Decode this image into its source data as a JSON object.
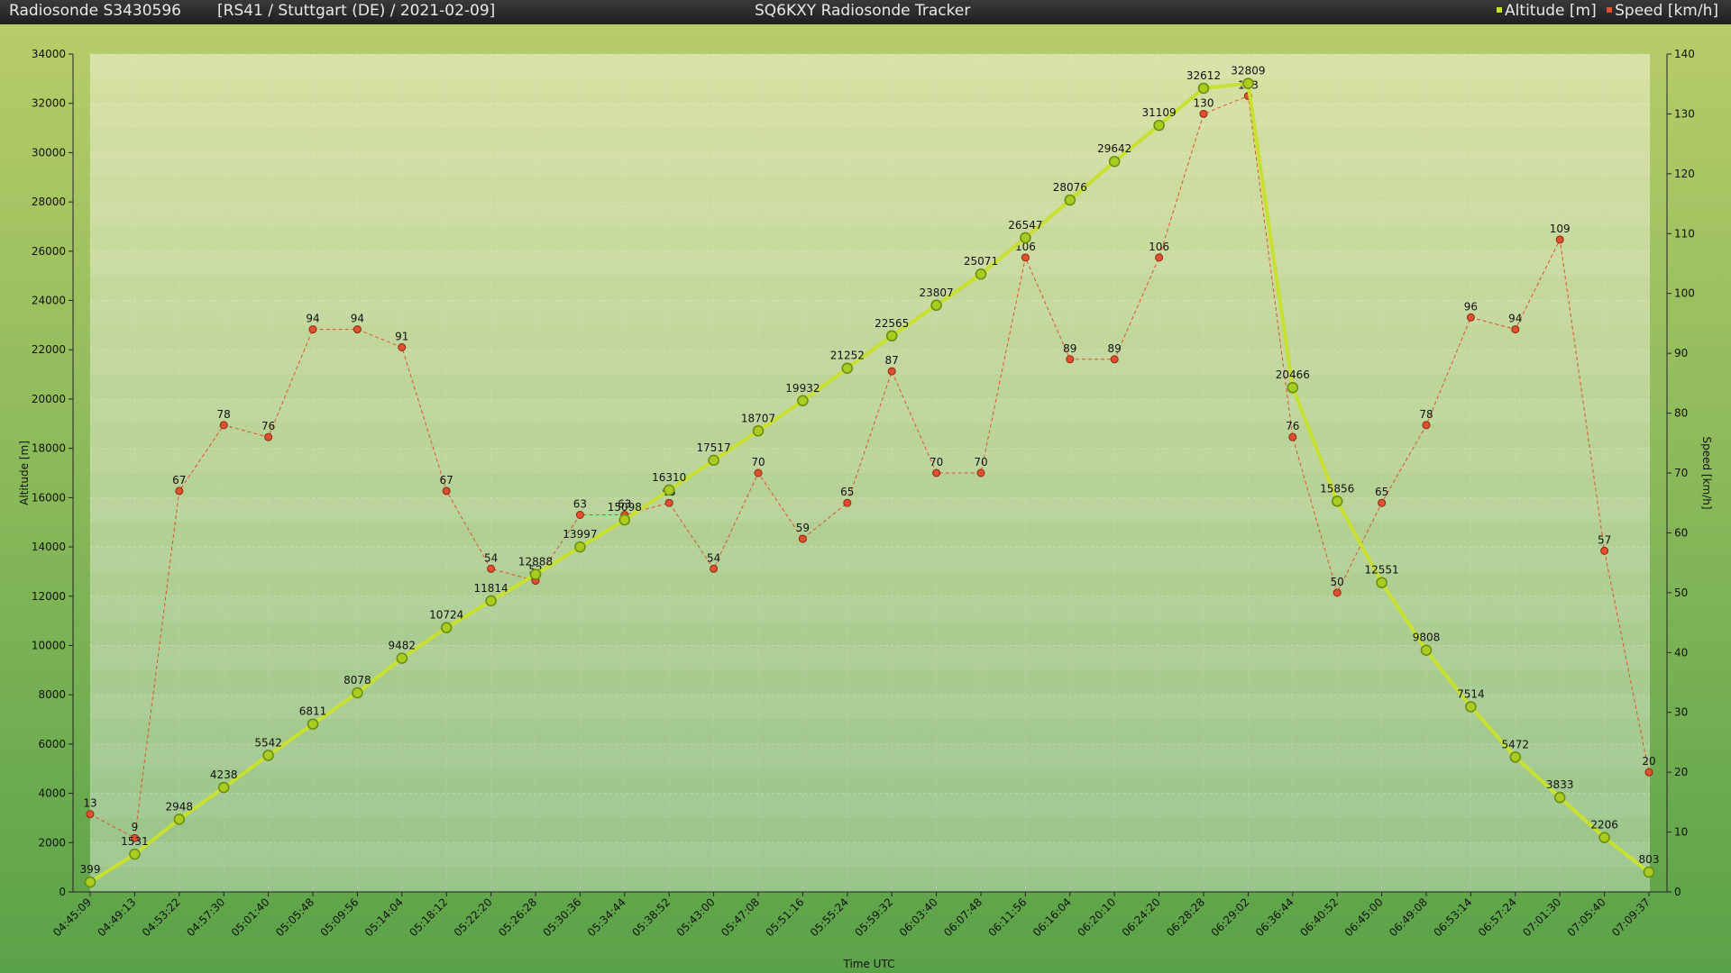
{
  "header": {
    "left_title": "Radiosonde S3430596",
    "info": "[RS41 / Stuttgart (DE) / 2021-02-09]",
    "center_title": "SQ6KXY Radiosonde Tracker"
  },
  "chart_data": {
    "type": "line",
    "xlabel": "Time UTC",
    "ylabel_left": "Altitude [m]",
    "ylabel_right": "Speed [km/h]",
    "ylim_left": [
      0,
      34000
    ],
    "ylim_right": [
      0,
      140
    ],
    "yticks_left": [
      0,
      2000,
      4000,
      6000,
      8000,
      10000,
      12000,
      14000,
      16000,
      18000,
      20000,
      22000,
      24000,
      26000,
      28000,
      30000,
      32000,
      34000
    ],
    "yticks_right": [
      0,
      10,
      20,
      30,
      40,
      50,
      60,
      70,
      80,
      90,
      100,
      110,
      120,
      130,
      140
    ],
    "grid": true,
    "legend_position": "top-right",
    "categories": [
      "04:45:09",
      "04:49:13",
      "04:53:22",
      "04:57:30",
      "05:01:40",
      "05:05:48",
      "05:09:56",
      "05:14:04",
      "05:18:12",
      "05:22:20",
      "05:26:28",
      "05:30:36",
      "05:34:44",
      "05:38:52",
      "05:43:00",
      "05:47:08",
      "05:51:16",
      "05:55:24",
      "05:59:32",
      "06:03:40",
      "06:07:48",
      "06:11:56",
      "06:16:04",
      "06:20:10",
      "06:24:20",
      "06:28:28",
      "06:29:02",
      "06:36:44",
      "06:40:52",
      "06:45:00",
      "06:49:08",
      "06:53:14",
      "06:57:24",
      "07:01:30",
      "07:05:40",
      "07:09:37"
    ],
    "series": [
      {
        "name": "Altitude [m]",
        "axis": "left",
        "color": "#c8e030",
        "values": [
          399,
          1531,
          2948,
          4238,
          5542,
          6811,
          8078,
          9482,
          10724,
          11814,
          12888,
          13997,
          15098,
          16310,
          17517,
          18707,
          19932,
          21252,
          22565,
          23807,
          25071,
          26547,
          28076,
          29642,
          31109,
          32612,
          32809,
          20466,
          15856,
          12551,
          9808,
          7514,
          5472,
          3833,
          2206,
          803
        ]
      },
      {
        "name": "Speed [km/h]",
        "axis": "right",
        "color": "#e05030",
        "values": [
          13,
          9,
          67,
          78,
          76,
          94,
          94,
          91,
          67,
          54,
          52,
          63,
          63,
          65,
          54,
          70,
          59,
          65,
          87,
          70,
          70,
          106,
          89,
          89,
          106,
          130,
          133,
          76,
          50,
          65,
          78,
          96,
          94,
          109,
          57,
          20
        ]
      }
    ]
  }
}
